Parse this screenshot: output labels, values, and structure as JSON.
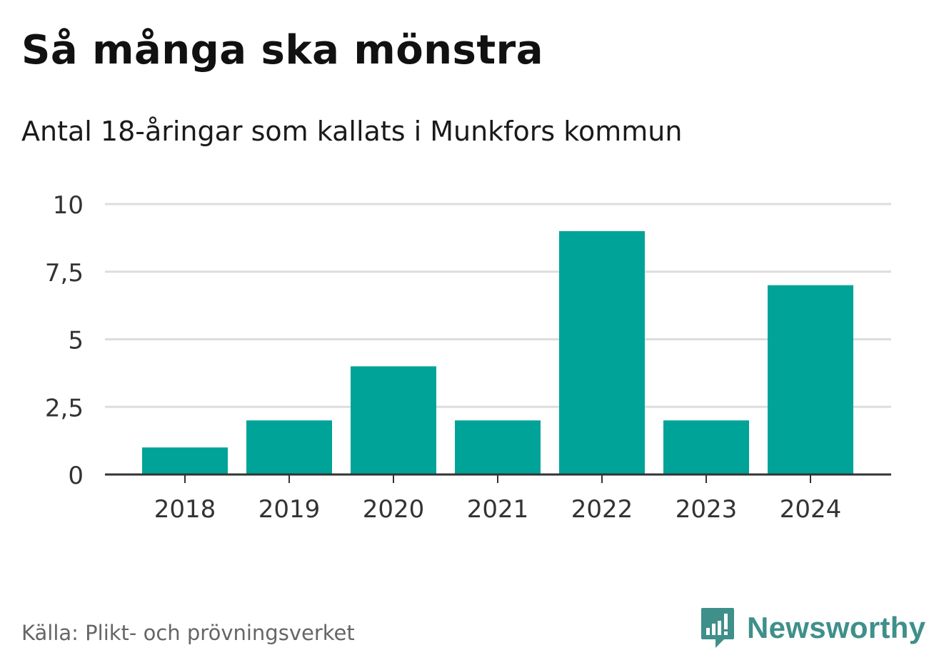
{
  "header": {
    "title": "Så många ska mönstra",
    "subtitle": "Antal 18-åringar som kallats i Munkfors kommun"
  },
  "footer": {
    "source": "Källa: Plikt- och prövningsverket",
    "brand": "Newsworthy",
    "brand_icon": "newsworthy-logo-icon"
  },
  "colors": {
    "bar": "#00a398",
    "grid": "#dddddd",
    "axis": "#333333",
    "brand": "#3f8f8a"
  },
  "chart_data": {
    "type": "bar",
    "title": "Så många ska mönstra",
    "subtitle": "Antal 18-åringar som kallats i Munkfors kommun",
    "xlabel": "",
    "ylabel": "",
    "categories": [
      "2018",
      "2019",
      "2020",
      "2021",
      "2022",
      "2023",
      "2024"
    ],
    "values": [
      1,
      2,
      4,
      2,
      9,
      2,
      7
    ],
    "ylim": [
      0,
      10
    ],
    "yticks": [
      0,
      2.5,
      5,
      7.5,
      10
    ],
    "ytick_labels": [
      "0",
      "2,5",
      "5",
      "7,5",
      "10"
    ],
    "grid": true,
    "legend": "none"
  }
}
